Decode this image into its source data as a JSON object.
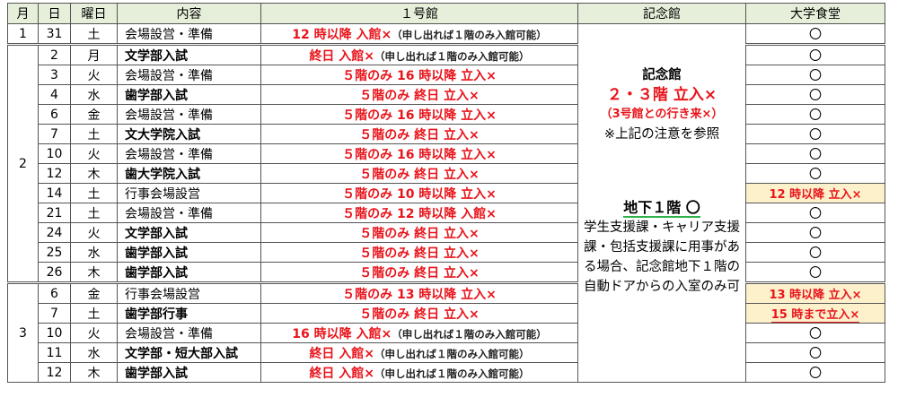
{
  "headers": [
    "月",
    "日",
    "曜日",
    "内容",
    "１号館",
    "記念館",
    "大学食堂"
  ],
  "memorial": {
    "title": "記念館",
    "floors": "２・３階 立入×",
    "note1": "（3号館との行き来×）",
    "note2": "※上記の注意を参照",
    "b1": "地下１階 〇",
    "b1_desc": "学生支援課・キャリア支援課・包括支援課に用事がある場合、記念館地下１階の自動ドアからの入室のみ可"
  },
  "rows": [
    {
      "month": "1",
      "day": "31",
      "dow": "土",
      "content": "会場設営・準備",
      "bold": false,
      "main": "12 時以降 入館×",
      "note": "（申し出れば１階のみ入館可能）",
      "cafe": "〇",
      "cafe_warn": false
    },
    {
      "month": "2",
      "day": "2",
      "dow": "月",
      "content": "文学部入試",
      "bold": true,
      "main": "終日 入館×",
      "note": "（申し出れば１階のみ入館可能）",
      "cafe": "〇",
      "cafe_warn": false
    },
    {
      "month": "",
      "day": "3",
      "dow": "火",
      "content": "会場設営・準備",
      "bold": false,
      "main": "５階のみ 16 時以降 立入×",
      "note": "",
      "cafe": "〇",
      "cafe_warn": false
    },
    {
      "month": "",
      "day": "4",
      "dow": "水",
      "content": "歯学部入試",
      "bold": true,
      "main": "５階のみ 終日 立入×",
      "note": "",
      "cafe": "〇",
      "cafe_warn": false
    },
    {
      "month": "",
      "day": "6",
      "dow": "金",
      "content": "会場設営・準備",
      "bold": false,
      "main": "５階のみ 16 時以降 立入×",
      "note": "",
      "cafe": "〇",
      "cafe_warn": false
    },
    {
      "month": "",
      "day": "7",
      "dow": "土",
      "content": "文大学院入試",
      "bold": true,
      "main": "５階のみ 終日 立入×",
      "note": "",
      "cafe": "〇",
      "cafe_warn": false
    },
    {
      "month": "",
      "day": "10",
      "dow": "火",
      "content": "会場設営・準備",
      "bold": false,
      "main": "５階のみ 16 時以降 立入×",
      "note": "",
      "cafe": "〇",
      "cafe_warn": false
    },
    {
      "month": "",
      "day": "12",
      "dow": "木",
      "content": "歯大学院入試",
      "bold": true,
      "main": "５階のみ 終日 立入×",
      "note": "",
      "cafe": "〇",
      "cafe_warn": false
    },
    {
      "month": "",
      "day": "14",
      "dow": "土",
      "content": "行事会場設営",
      "bold": false,
      "main": "５階のみ 10 時以降 立入×",
      "note": "",
      "cafe": "12 時以降 立入×",
      "cafe_warn": true
    },
    {
      "month": "",
      "day": "21",
      "dow": "土",
      "content": "会場設営・準備",
      "bold": false,
      "main": "５階のみ 12 時以降 入館×",
      "note": "",
      "cafe": "〇",
      "cafe_warn": false
    },
    {
      "month": "",
      "day": "24",
      "dow": "火",
      "content": "文学部入試",
      "bold": true,
      "main": "５階のみ 終日 立入×",
      "note": "",
      "cafe": "〇",
      "cafe_warn": false
    },
    {
      "month": "",
      "day": "25",
      "dow": "水",
      "content": "歯学部入試",
      "bold": true,
      "main": "５階のみ 終日 立入×",
      "note": "",
      "cafe": "〇",
      "cafe_warn": false
    },
    {
      "month": "",
      "day": "26",
      "dow": "木",
      "content": "歯学部入試",
      "bold": true,
      "main": "５階のみ 終日 立入×",
      "note": "",
      "cafe": "〇",
      "cafe_warn": false
    },
    {
      "month": "3",
      "day": "6",
      "dow": "金",
      "content": "行事会場設営",
      "bold": false,
      "main": "５階のみ 13 時以降 立入×",
      "note": "",
      "cafe": "13 時以降 立入×",
      "cafe_warn": true
    },
    {
      "month": "",
      "day": "7",
      "dow": "土",
      "content": "歯学部行事",
      "bold": true,
      "main": "５階のみ 終日 立入×",
      "note": "",
      "cafe": "15 時まで立入×",
      "cafe_warn": true
    },
    {
      "month": "",
      "day": "10",
      "dow": "火",
      "content": "会場設営・準備",
      "bold": false,
      "main": "16 時以降 入館×",
      "note": "（申し出れば１階のみ入館可能）",
      "cafe": "〇",
      "cafe_warn": false
    },
    {
      "month": "",
      "day": "11",
      "dow": "水",
      "content": "文学部・短大部入試",
      "bold": true,
      "main": "終日 入館×",
      "note": "（申し出れば１階のみ入館可能）",
      "cafe": "〇",
      "cafe_warn": false
    },
    {
      "month": "",
      "day": "12",
      "dow": "木",
      "content": "歯学部入試",
      "bold": true,
      "main": "終日 入館×",
      "note": "（申し出れば１階のみ入館可能）",
      "cafe": "〇",
      "cafe_warn": false
    }
  ]
}
